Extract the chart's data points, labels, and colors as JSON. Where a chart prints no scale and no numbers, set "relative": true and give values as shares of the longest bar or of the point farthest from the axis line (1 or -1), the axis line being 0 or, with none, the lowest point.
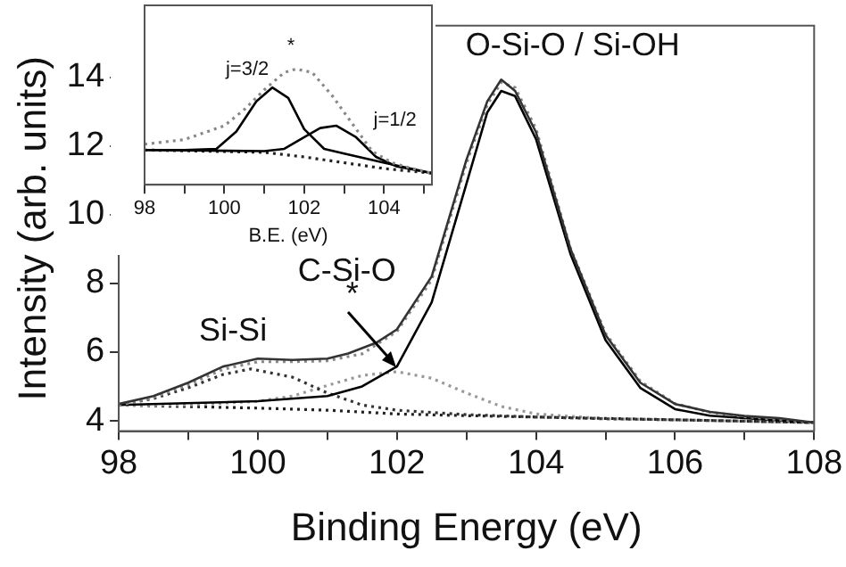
{
  "chart_data": [
    {
      "type": "line",
      "xlabel": "Binding Energy (eV)",
      "ylabel": "Intensity (arb. units)",
      "xlim": [
        98,
        108
      ],
      "ylim": [
        3.7,
        15.5
      ],
      "xticks": [
        98,
        {
          "value": 99,
          "label": null
        },
        100,
        {
          "value": 101,
          "label": null
        },
        102,
        {
          "value": 103,
          "label": null
        },
        104,
        {
          "value": 105,
          "label": null
        },
        106,
        {
          "value": 107,
          "label": null
        },
        108
      ],
      "yticks": [
        4,
        6,
        8,
        10,
        12,
        14
      ],
      "marker": "none",
      "annotations": [
        {
          "text": "*",
          "x": 102,
          "y": 5.43
        }
      ],
      "series": [
        {
          "color": "#333333",
          "line_style": "solid",
          "x": [
            98,
            98.5,
            99,
            99.5,
            100,
            100.5,
            101,
            101.3,
            101.7,
            102,
            102.5,
            103,
            103.3,
            103.5,
            103.7,
            104,
            104.5,
            105,
            105.5,
            106,
            106.5,
            107,
            107.5,
            108
          ],
          "values": [
            4.49,
            4.72,
            5.11,
            5.58,
            5.81,
            5.77,
            5.81,
            5.96,
            6.27,
            6.66,
            8.2,
            11.6,
            13.3,
            13.93,
            13.6,
            12.4,
            8.98,
            6.5,
            5.11,
            4.49,
            4.26,
            4.14,
            4.08,
            3.95
          ]
        },
        {
          "color": "#888888",
          "line_style": "dotted",
          "x": [
            98,
            98.5,
            99,
            99.5,
            100,
            100.5,
            101,
            101.5,
            102,
            102.5,
            103,
            103.3,
            103.5,
            103.7,
            104,
            104.5,
            105,
            105.5,
            106,
            106.5,
            107,
            108
          ],
          "values": [
            4.45,
            4.68,
            5.05,
            5.5,
            5.72,
            5.72,
            5.75,
            5.95,
            6.6,
            8.1,
            11.5,
            13.2,
            13.85,
            13.7,
            12.5,
            9.0,
            6.55,
            5.15,
            4.5,
            4.25,
            4.12,
            3.95
          ]
        },
        {
          "name": "O-Si-O / Si-OH",
          "color": "#000000",
          "line_style": "solid",
          "x": [
            98,
            100,
            101,
            101.5,
            102,
            102.5,
            103,
            103.3,
            103.5,
            103.7,
            104,
            104.5,
            105,
            105.5,
            106,
            106.5,
            107,
            108
          ],
          "values": [
            4.46,
            4.57,
            4.72,
            5.0,
            5.58,
            7.45,
            10.9,
            12.98,
            13.6,
            13.45,
            12.2,
            8.83,
            6.35,
            4.96,
            4.34,
            4.15,
            4.08,
            3.95
          ]
        },
        {
          "name": "Si-Si",
          "color": "#333333",
          "line_style": "dotted",
          "x": [
            98,
            98.5,
            99,
            99.5,
            99.9,
            100.5,
            101,
            101.5,
            102,
            103,
            104,
            105,
            106,
            108
          ],
          "values": [
            4.46,
            4.65,
            4.96,
            5.35,
            5.51,
            5.27,
            4.81,
            4.46,
            4.31,
            4.18,
            4.11,
            4.06,
            4.03,
            3.95
          ]
        },
        {
          "name": "C-Si-O",
          "color": "#999999",
          "line_style": "dotted",
          "x": [
            98,
            99,
            100,
            100.5,
            101,
            101.5,
            102,
            102.5,
            103,
            103.5,
            104,
            105,
            106,
            108
          ],
          "values": [
            4.46,
            4.46,
            4.57,
            4.72,
            5.03,
            5.32,
            5.43,
            5.24,
            4.81,
            4.42,
            4.2,
            4.06,
            4.03,
            3.95
          ]
        },
        {
          "color": "#222222",
          "line_style": "dotted",
          "x": [
            98,
            100,
            101,
            102,
            103,
            104,
            106,
            108
          ],
          "values": [
            4.46,
            4.37,
            4.31,
            4.2,
            4.15,
            4.11,
            4.03,
            3.95
          ]
        }
      ]
    },
    {
      "type": "line",
      "relative": true,
      "xlabel": "B.E. (eV)",
      "xlim": [
        98,
        105.2
      ],
      "tick_labels": "x",
      "marker": "none",
      "xticks": [
        98,
        {
          "value": 99,
          "label": null
        },
        100,
        {
          "value": 101,
          "label": null
        },
        102,
        {
          "value": 103,
          "label": null
        },
        104,
        {
          "value": 105,
          "label": null
        }
      ],
      "annotations": [
        "*"
      ],
      "series": [
        {
          "color": "#888888",
          "line_style": "dotted",
          "x": [
            98,
            99,
            100,
            100.5,
            101,
            101.5,
            101.8,
            102.2,
            102.7,
            103.2,
            103.7,
            104.2,
            104.7,
            105.2
          ],
          "values": [
            0.35,
            0.39,
            0.51,
            0.65,
            0.82,
            0.97,
            1.0,
            0.97,
            0.77,
            0.53,
            0.29,
            0.19,
            0.14,
            0.1
          ]
        },
        {
          "name": "j=3/2",
          "color": "#000000",
          "line_style": "solid",
          "x": [
            98,
            99,
            99.8,
            100.3,
            100.8,
            101.2,
            101.6,
            102,
            102.5,
            103,
            104,
            105.2
          ],
          "values": [
            0.3,
            0.3,
            0.31,
            0.46,
            0.72,
            0.84,
            0.75,
            0.48,
            0.31,
            0.27,
            0.19,
            0.1
          ]
        },
        {
          "name": "j=1/2",
          "color": "#000000",
          "line_style": "solid",
          "x": [
            98,
            101,
            101.5,
            102,
            102.4,
            102.8,
            103.3,
            103.8,
            104.3,
            105.2
          ],
          "values": [
            0.3,
            0.29,
            0.31,
            0.41,
            0.49,
            0.51,
            0.41,
            0.24,
            0.16,
            0.1
          ]
        },
        {
          "color": "#222222",
          "line_style": "dotted",
          "x": [
            98,
            101,
            102,
            103,
            104,
            105.2
          ],
          "values": [
            0.3,
            0.28,
            0.24,
            0.19,
            0.14,
            0.1
          ]
        }
      ]
    }
  ]
}
